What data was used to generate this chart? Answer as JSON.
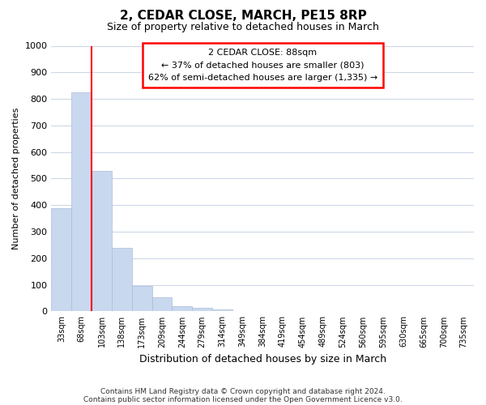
{
  "title": "2, CEDAR CLOSE, MARCH, PE15 8RP",
  "subtitle": "Size of property relative to detached houses in March",
  "xlabel": "Distribution of detached houses by size in March",
  "ylabel": "Number of detached properties",
  "bar_color": "#c8d8ee",
  "bar_edge_color": "#aabcd8",
  "bin_labels": [
    "33sqm",
    "68sqm",
    "103sqm",
    "138sqm",
    "173sqm",
    "209sqm",
    "244sqm",
    "279sqm",
    "314sqm",
    "349sqm",
    "384sqm",
    "419sqm",
    "454sqm",
    "489sqm",
    "524sqm",
    "560sqm",
    "595sqm",
    "630sqm",
    "665sqm",
    "700sqm",
    "735sqm"
  ],
  "bar_heights": [
    390,
    825,
    530,
    240,
    97,
    52,
    20,
    12,
    8,
    0,
    0,
    0,
    0,
    0,
    0,
    0,
    0,
    0,
    0,
    0,
    0
  ],
  "ylim": [
    0,
    1000
  ],
  "yticks": [
    0,
    100,
    200,
    300,
    400,
    500,
    600,
    700,
    800,
    900,
    1000
  ],
  "property_label": "2 CEDAR CLOSE: 88sqm",
  "annotation_line1": "← 37% of detached houses are smaller (803)",
  "annotation_line2": "62% of semi-detached houses are larger (1,335) →",
  "red_line_x": 1.5,
  "footer1": "Contains HM Land Registry data © Crown copyright and database right 2024.",
  "footer2": "Contains public sector information licensed under the Open Government Licence v3.0.",
  "grid_color": "#cdd8e8",
  "background_color": "#ffffff",
  "title_fontsize": 11,
  "subtitle_fontsize": 9
}
